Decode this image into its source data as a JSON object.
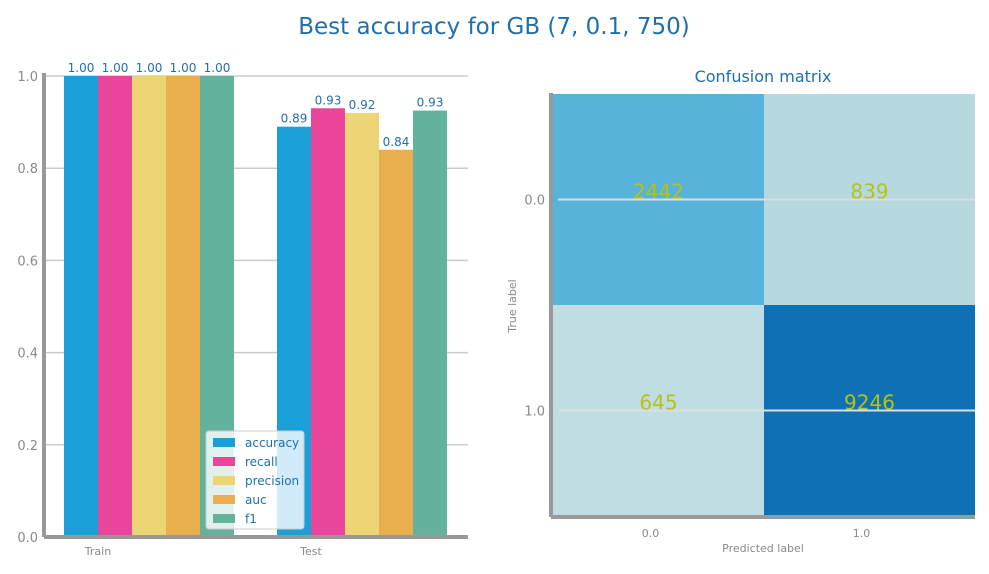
{
  "suptitle": "Best accuracy for GB (7, 0.1, 750)",
  "colors": {
    "accuracy": "#1a9fd9",
    "recall": "#e9459a",
    "precision": "#edd576",
    "auc": "#e9ae4e",
    "f1": "#63b29e",
    "text": "#1f6fae",
    "axis": "#999999",
    "grid": "#cccccc",
    "cm_low": "#bfdde2",
    "cm_mid": "#b5d9df",
    "cm_midhigh": "#58b3da",
    "cm_high": "#0f70b5",
    "cell_text": "#b5c21a"
  },
  "chart_data": [
    {
      "type": "bar",
      "categories": [
        "Train",
        "Test"
      ],
      "series": [
        {
          "name": "accuracy",
          "values": [
            1.0,
            0.89
          ],
          "labels": [
            "1.00",
            "0.89"
          ]
        },
        {
          "name": "recall",
          "values": [
            1.0,
            0.93
          ],
          "labels": [
            "1.00",
            "0.93"
          ]
        },
        {
          "name": "precision",
          "values": [
            1.0,
            0.92
          ],
          "labels": [
            "1.00",
            "0.92"
          ]
        },
        {
          "name": "auc",
          "values": [
            1.0,
            0.84
          ],
          "labels": [
            "1.00",
            "0.84"
          ]
        },
        {
          "name": "f1",
          "values": [
            1.0,
            0.925
          ],
          "labels": [
            "1.00",
            "0.93"
          ]
        }
      ],
      "ylim": [
        0,
        1.0
      ],
      "yticks": [
        "0.0",
        "0.2",
        "0.4",
        "0.6",
        "0.8",
        "1.0"
      ],
      "grid": true,
      "legend_position": "bottom-right"
    },
    {
      "type": "heatmap",
      "title": "Confusion matrix",
      "xlabel": "Predicted label",
      "ylabel": "True label",
      "x_ticks": [
        "0.0",
        "1.0"
      ],
      "y_ticks": [
        "0.0",
        "1.0"
      ],
      "matrix": [
        [
          2442,
          839
        ],
        [
          645,
          9246
        ]
      ]
    }
  ]
}
